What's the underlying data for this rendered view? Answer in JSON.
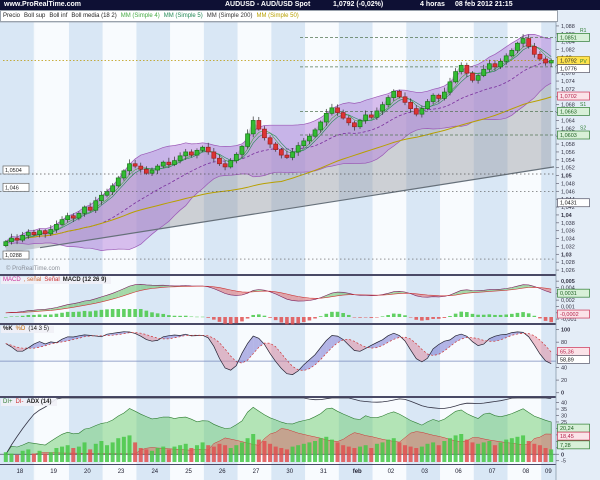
{
  "titlebar": {
    "site": "www.ProRealTime.com",
    "instrument": "AUDUSD - AUD/USD Spot",
    "price": "1,0792 (-0,02%)",
    "timeframe": "4 horas",
    "datetime": "08 feb 2012 21:15"
  },
  "watermark": "© ProRealTime.com",
  "main_legend": [
    {
      "text": "Precio",
      "color": "#222222",
      "bold": false
    },
    {
      "text": "Boll sup",
      "color": "#222222",
      "bold": false
    },
    {
      "text": "Boll inf",
      "color": "#222222",
      "bold": false
    },
    {
      "text": "Boll media (18 2)",
      "color": "#222222",
      "bold": false
    },
    {
      "text": "MM (Simple 4)",
      "color": "#44aa44",
      "bold": false
    },
    {
      "text": "MM (Simple 5)",
      "color": "#228855",
      "bold": false
    },
    {
      "text": "MM (Simple 200)",
      "color": "#333333",
      "bold": false
    },
    {
      "text": "MM (Simple 50)",
      "color": "#b8a000",
      "bold": false
    }
  ],
  "panel_legends": {
    "macd": [
      {
        "text": "MACD",
        "color": "#cc3399",
        "bold": false
      },
      {
        "text": ", señal",
        "color": "#cc6633",
        "bold": false
      },
      {
        "text": "Señal",
        "color": "#cc3333",
        "bold": false
      },
      {
        "text": "MACD (12 26 9)",
        "color": "#222222",
        "bold": true
      }
    ],
    "stochastic": [
      {
        "text": "%K",
        "color": "#222222",
        "bold": true
      },
      {
        "text": "%D",
        "color": "#bb6600",
        "bold": false
      },
      {
        "text": "(14 3 5)",
        "color": "#222222",
        "bold": false
      }
    ],
    "adx": [
      {
        "text": "DI+",
        "color": "#2e7d32",
        "bold": false
      },
      {
        "text": "DI-",
        "color": "#cc3333",
        "bold": false
      },
      {
        "text": "ADX (14)",
        "color": "#222222",
        "bold": true
      }
    ]
  },
  "colors": {
    "titlebar_bg": "#0e1034",
    "stripe_blue": "#d9e7f5",
    "stripe_white": "#f8fbfe",
    "axis_bg": "#e4edf7",
    "separator": "#4a4a66",
    "candle_up": "#33bb33",
    "candle_up_edge": "#1a7a1a",
    "candle_down": "#dd3333",
    "candle_down_edge": "#992222",
    "bollinger_fill": "rgba(182,130,220,0.5)",
    "bollinger_edge": "#9b59b6",
    "bollinger_mid": "#7a2f9e",
    "gray_fill": "rgba(145,148,158,0.42)",
    "mm50": "#b8a000",
    "mm4": "#44aa44",
    "mm5": "#228855",
    "trendline": "#66707a",
    "macd_up": "rgba(96,190,96,0.55)",
    "macd_down": "rgba(225,110,110,0.55)",
    "sto_up": "rgba(110,110,205,0.5)",
    "sto_down": "rgba(225,135,155,0.5)",
    "dip_fill": "rgba(96,200,96,0.45)",
    "din_fill": "rgba(230,110,110,0.5)",
    "vol_up": "rgba(70,200,70,0.85)",
    "vol_down": "rgba(225,80,80,0.85)"
  },
  "chart_data": {
    "type": "candlestick",
    "title": "AUDUSD - AUD/USD Spot",
    "timeframe": "4 horas",
    "last_update": "08 feb 2012 21:15",
    "price_axis": {
      "min": 1.025,
      "max": 1.089,
      "first_tick": 1.026,
      "tick_step": 0.002,
      "bold_step": 0.01
    },
    "open_start": 1.0322,
    "days": [
      {
        "label": "18",
        "closes": [
          1.0332,
          1.0341,
          1.0336,
          1.0348,
          1.0356,
          1.035
        ],
        "vol": [
          0.35,
          0.3,
          0.25,
          0.4,
          0.45,
          0.3
        ]
      },
      {
        "label": "19",
        "closes": [
          1.036,
          1.0352,
          1.0363,
          1.0376,
          1.0388,
          1.0398
        ],
        "vol": [
          0.4,
          0.3,
          0.35,
          0.5,
          0.55,
          0.6
        ]
      },
      {
        "label": "20",
        "closes": [
          1.0392,
          1.0404,
          1.042,
          1.0412,
          1.0436,
          1.045
        ],
        "vol": [
          0.5,
          0.55,
          0.7,
          0.45,
          0.65,
          0.75
        ]
      },
      {
        "label": "23",
        "closes": [
          1.0459,
          1.0474,
          1.0494,
          1.0512,
          1.053,
          1.0524
        ],
        "vol": [
          0.6,
          0.7,
          0.85,
          0.9,
          0.95,
          0.7
        ]
      },
      {
        "label": "24",
        "closes": [
          1.0516,
          1.0506,
          1.0514,
          1.0524,
          1.0534,
          1.0528
        ],
        "vol": [
          0.5,
          0.45,
          0.4,
          0.5,
          0.55,
          0.45
        ]
      },
      {
        "label": "25",
        "closes": [
          1.0538,
          1.055,
          1.056,
          1.0552,
          1.0564,
          1.0572
        ],
        "vol": [
          0.55,
          0.6,
          0.65,
          0.5,
          0.6,
          0.7
        ]
      },
      {
        "label": "26",
        "closes": [
          1.056,
          1.0544,
          1.053,
          1.0522,
          1.0538,
          1.0554
        ],
        "vol": [
          0.6,
          0.55,
          0.65,
          0.6,
          0.5,
          0.6
        ]
      },
      {
        "label": "27",
        "closes": [
          1.0574,
          1.0606,
          1.064,
          1.0618,
          1.0596,
          1.058
        ],
        "vol": [
          0.7,
          0.85,
          1,
          0.8,
          0.75,
          0.65
        ]
      },
      {
        "label": "30",
        "closes": [
          1.0566,
          1.0552,
          1.0546,
          1.056,
          1.0576,
          1.0588
        ],
        "vol": [
          0.55,
          0.5,
          0.45,
          0.55,
          0.6,
          0.65
        ]
      },
      {
        "label": "31",
        "closes": [
          1.06,
          1.0616,
          1.0636,
          1.0658,
          1.0672,
          1.066
        ],
        "vol": [
          0.7,
          0.75,
          0.85,
          0.9,
          0.8,
          0.7
        ]
      },
      {
        "label": "feb",
        "closes": [
          1.0646,
          1.0634,
          1.0624,
          1.064,
          1.0654,
          1.0648
        ],
        "vol": [
          0.6,
          0.55,
          0.5,
          0.55,
          0.6,
          0.5
        ]
      },
      {
        "label": "02",
        "closes": [
          1.0664,
          1.068,
          1.0698,
          1.0714,
          1.07,
          1.0686
        ],
        "vol": [
          0.65,
          0.7,
          0.8,
          0.85,
          0.7,
          0.6
        ]
      },
      {
        "label": "03",
        "closes": [
          1.067,
          1.0656,
          1.067,
          1.0688,
          1.0704,
          1.0696
        ],
        "vol": [
          0.55,
          0.5,
          0.55,
          0.65,
          0.7,
          0.6
        ]
      },
      {
        "label": "06",
        "closes": [
          1.0712,
          1.0738,
          1.0764,
          1.078,
          1.076,
          1.0742
        ],
        "vol": [
          0.75,
          0.85,
          0.95,
          1,
          0.8,
          0.7
        ]
      },
      {
        "label": "07",
        "closes": [
          1.0754,
          1.077,
          1.0784,
          1.0776,
          1.079,
          1.0804
        ],
        "vol": [
          0.65,
          0.7,
          0.75,
          0.6,
          0.7,
          0.8
        ]
      },
      {
        "label": "08",
        "closes": [
          1.0818,
          1.0836,
          1.0848,
          1.0828,
          1.0808,
          1.0796
        ],
        "vol": [
          0.85,
          0.9,
          0.95,
          0.75,
          0.65,
          0.6
        ]
      },
      {
        "label": "09",
        "closes": [
          1.0786,
          1.0792
        ],
        "vol": [
          0.5,
          0.45
        ]
      }
    ],
    "overlays": {
      "bollinger_period": 18,
      "bollinger_dev": 2,
      "mm_periods": [
        4,
        5,
        200,
        50
      ],
      "trendline": {
        "start_price": 1.0302,
        "end_price": 1.0522
      }
    },
    "support_lines": [
      {
        "price": 1.0504,
        "label": "1,0504"
      },
      {
        "price": 1.046,
        "label": "1,046"
      },
      {
        "price": 1.0288,
        "label": "1,0288"
      }
    ],
    "pivot_lines": [
      {
        "price": 1.0851,
        "tag": "R1",
        "label": "1,0851",
        "style": "green"
      },
      {
        "price": 1.0776,
        "tag": "PV",
        "label": "1,0776",
        "style": "white"
      },
      {
        "price": 1.0663,
        "tag": "S1",
        "label": "1,0663",
        "style": "green"
      },
      {
        "price": 1.0603,
        "tag": "S2",
        "label": "1,0603",
        "style": "green"
      }
    ],
    "current_price": {
      "value": 1.0792,
      "label": "1,0792",
      "style": "yellow"
    },
    "extra_axis_boxes": [
      {
        "value": 1.0702,
        "label": "1,0702",
        "style": "pink"
      },
      {
        "value": 1.0431,
        "label": "1,0431",
        "style": "white"
      }
    ],
    "x_labels": [
      "18",
      "19",
      "20",
      "23",
      "24",
      "25",
      "26",
      "27",
      "30",
      "31",
      "feb",
      "02",
      "03",
      "06",
      "07",
      "08",
      "09"
    ],
    "indicators": {
      "macd": {
        "params": "12 26 9",
        "axis": {
          "min": -0.0013,
          "max": 0.0055,
          "ticks": [
            -0.001,
            0,
            0.001,
            0.002,
            0.003,
            0.004,
            0.005
          ]
        },
        "boxes": [
          {
            "value": 0.0031,
            "label": "0,0031",
            "style": "green"
          },
          {
            "value": -0.0002,
            "label": "-0,0002",
            "style": "pink"
          }
        ]
      },
      "stochastic": {
        "params": "14 3 5",
        "axis": {
          "min": -2,
          "max": 104,
          "ticks": [
            0,
            20,
            40,
            60,
            80,
            100
          ]
        },
        "ref_lines": [
          50
        ],
        "boxes": [
          {
            "value": 65.36,
            "label": "65,36",
            "style": "pink"
          },
          {
            "value": 58.89,
            "label": "58,89",
            "style": "white"
          }
        ]
      },
      "adx": {
        "params": "14",
        "axis": {
          "min": -6,
          "max": 42,
          "ticks": [
            -5,
            0,
            5,
            10,
            15,
            20,
            25,
            30,
            35,
            40
          ]
        },
        "boxes": [
          {
            "value": 20.24,
            "label": "20,24",
            "style": "green"
          },
          {
            "value": 18.45,
            "label": "18,45",
            "style": "pink"
          },
          {
            "value": 7.28,
            "label": "7,28",
            "style": "green"
          }
        ]
      }
    }
  }
}
